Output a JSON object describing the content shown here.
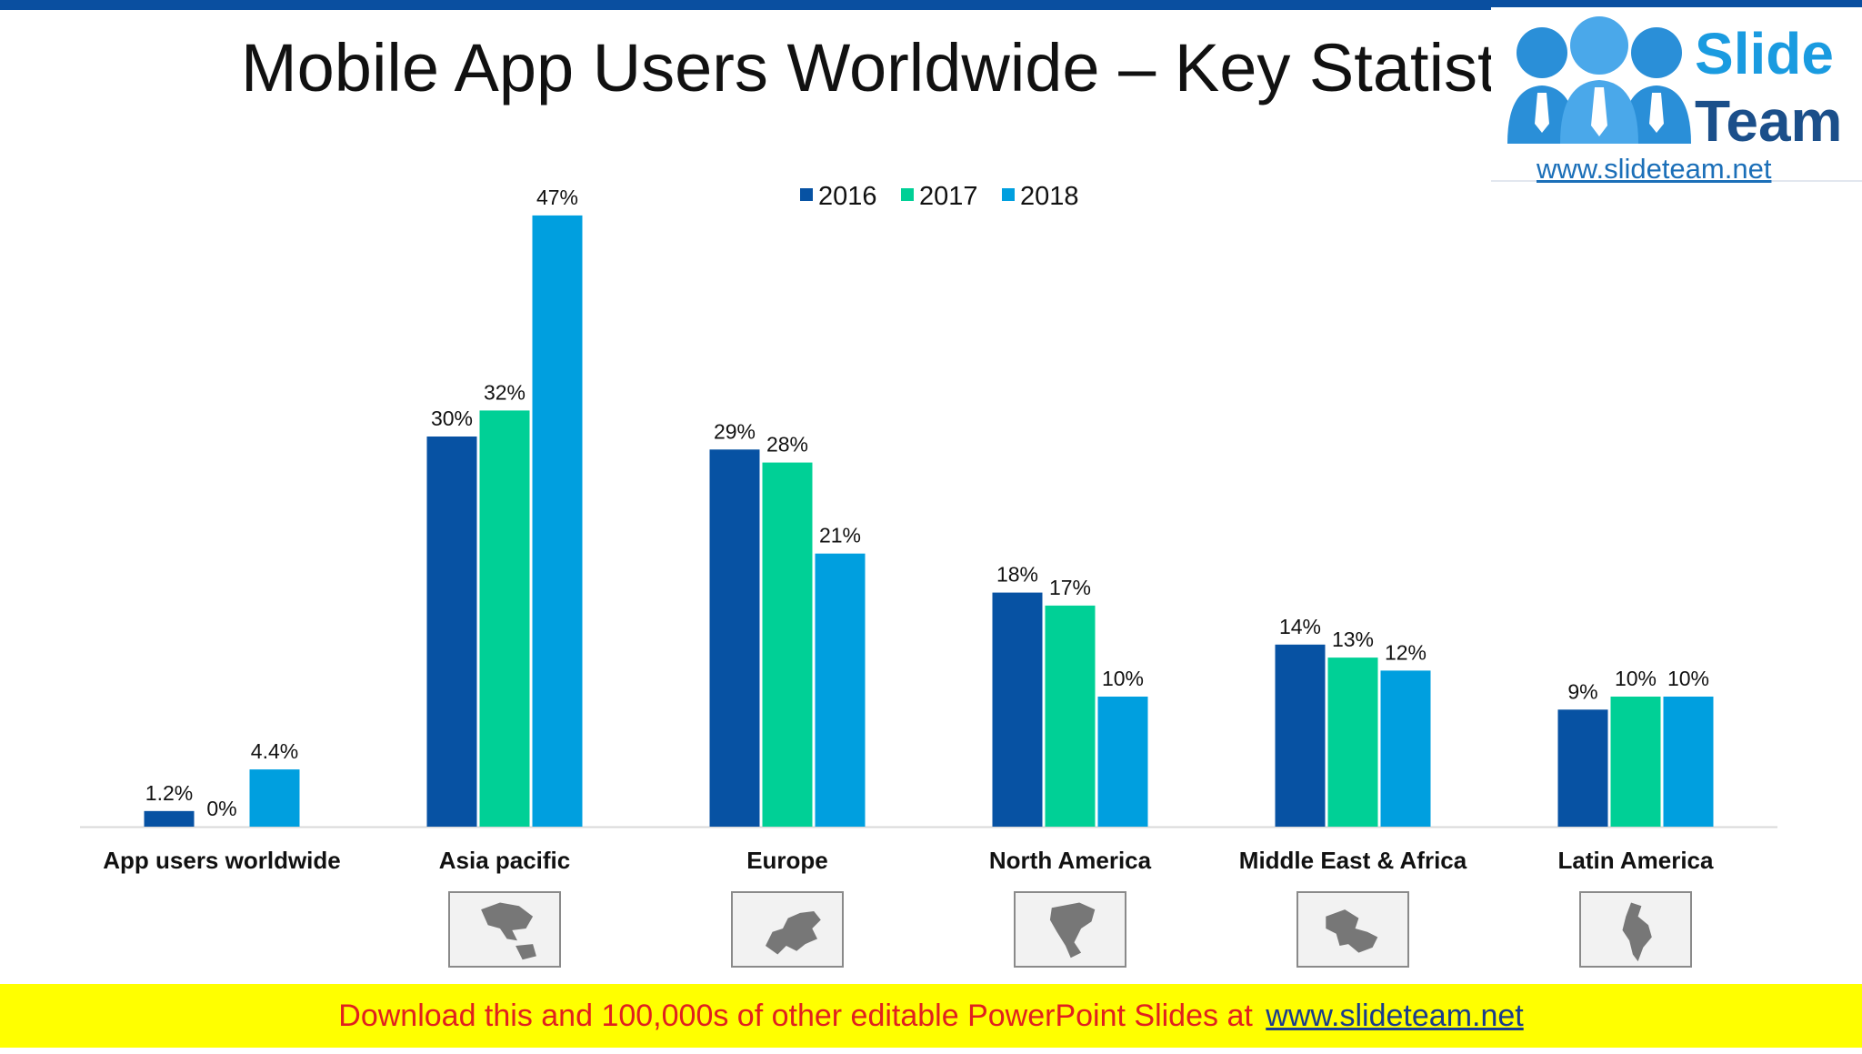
{
  "title": "Mobile App Users Worldwide – Key Statistics",
  "logo": {
    "brand_top": "Slide",
    "brand_bottom": "Team",
    "url": "www.slideteam.net"
  },
  "footer": {
    "text": "Download this and 100,000s of other editable PowerPoint Slides at",
    "link": "www.slideteam.net"
  },
  "colors": {
    "2016": "#0752a3",
    "2017": "#00d096",
    "2018": "#009fdf",
    "map_bg": "#f2f2f2",
    "map_land": "#777777"
  },
  "chart_data": {
    "type": "bar",
    "title": "",
    "categories": [
      "App users worldwide",
      "Asia pacific",
      "Europe",
      "North America",
      "Middle East & Africa",
      "Latin America"
    ],
    "series": [
      {
        "name": "2016",
        "values": [
          1.2,
          30,
          29,
          18,
          14,
          9
        ],
        "labels": [
          "1.2%",
          "30%",
          "29%",
          "18%",
          "14%",
          "9%"
        ]
      },
      {
        "name": "2017",
        "values": [
          0,
          32,
          28,
          17,
          13,
          10
        ],
        "labels": [
          "0%",
          "32%",
          "28%",
          "17%",
          "13%",
          "10%"
        ]
      },
      {
        "name": "2018",
        "values": [
          4.4,
          47,
          21,
          10,
          12,
          10
        ],
        "labels": [
          "4.4%",
          "47%",
          "21%",
          "10%",
          "12%",
          "10%"
        ]
      }
    ],
    "ylim": [
      0,
      47
    ],
    "xlabel": "",
    "ylabel": "",
    "legend_position": "top-center",
    "grid": false,
    "region_map_icons": [
      "asia-pacific-map-icon",
      "europe-map-icon",
      "north-america-map-icon",
      "middle-east-africa-map-icon",
      "latin-america-map-icon"
    ]
  }
}
